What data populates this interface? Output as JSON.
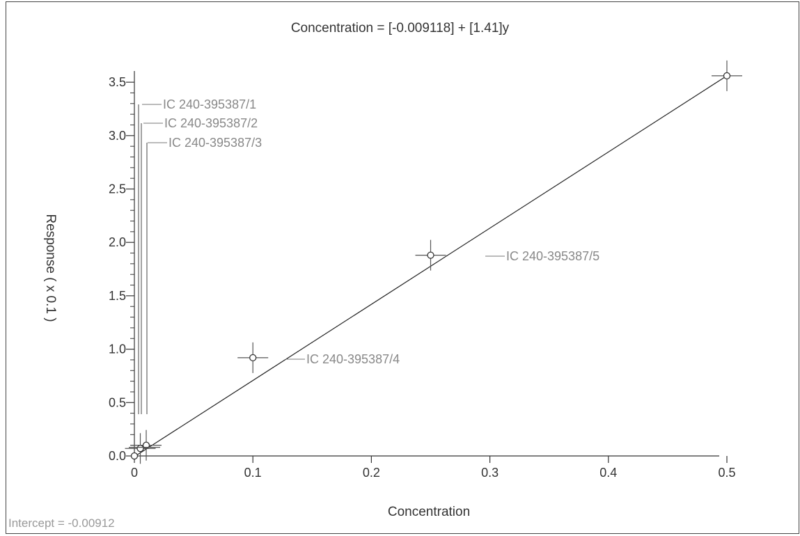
{
  "chart_data": {
    "type": "scatter",
    "title": "Concentration = [-0.009118] + [1.41]y",
    "xlabel": "Concentration",
    "ylabel": "Response ( x 0.1 )",
    "xlim": [
      0,
      0.5
    ],
    "ylim": [
      0,
      3.6
    ],
    "x_ticks": [
      0,
      0.1,
      0.2,
      0.3,
      0.4,
      0.5
    ],
    "x_tick_labels": [
      "0",
      "0.1",
      "0.2",
      "0.3",
      "0.4",
      "0.5"
    ],
    "y_ticks": [
      0,
      0.5,
      1,
      1.5,
      2,
      2.5,
      3,
      3.5
    ],
    "y_tick_labels": [
      "0.0",
      "0.5",
      "1.0",
      "1.5",
      "2.0",
      "2.5",
      "3.0",
      "3.5"
    ],
    "series": [
      {
        "points": [
          {
            "x": 0,
            "y": 0
          },
          {
            "x": 0.005,
            "y": 0.07
          },
          {
            "x": 0.01,
            "y": 0.1
          },
          {
            "x": 0.1,
            "y": 0.92
          },
          {
            "x": 0.25,
            "y": 1.88
          },
          {
            "x": 0.5,
            "y": 3.56
          }
        ]
      }
    ],
    "fit_line": {
      "x": [
        0,
        0.5
      ],
      "y": [
        0.0,
        3.56
      ]
    },
    "annotations": [
      {
        "label": "IC 240-395387/1",
        "x": 0.005,
        "y": 0.07
      },
      {
        "label": "IC 240-395387/2",
        "x": 0.008,
        "y": 0.09
      },
      {
        "label": "IC 240-395387/3",
        "x": 0.01,
        "y": 0.1
      },
      {
        "label": "IC 240-395387/4",
        "x": 0.1,
        "y": 0.92
      },
      {
        "label": "IC 240-395387/5",
        "x": 0.25,
        "y": 1.88
      }
    ],
    "grid": false,
    "footer_text": "Intercept = -0.00912"
  }
}
